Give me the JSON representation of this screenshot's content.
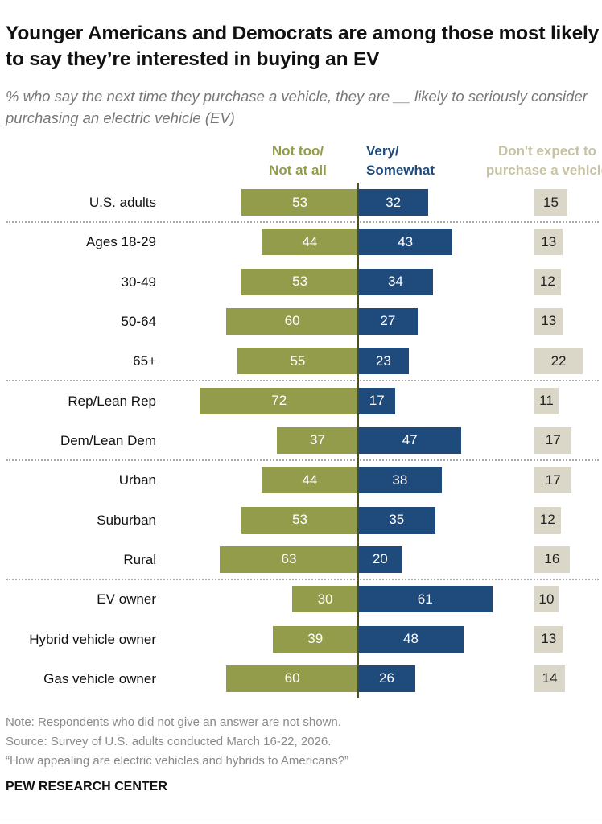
{
  "title": "Younger Americans and Democrats are among those most likely to say they’re interested in buying an EV",
  "subtitle": "% who say the next time they purchase a vehicle, they are __ likely to seriously consider purchasing an electric vehicle (EV)",
  "chart_data": {
    "type": "bar",
    "orientation": "diverging-horizontal",
    "categories": [
      "U.S. adults",
      "Ages 18-29",
      "30-49",
      "50-64",
      "65+",
      "Rep/Lean Rep",
      "Dem/Lean Dem",
      "Urban",
      "Suburban",
      "Rural",
      "EV owner",
      "Hybrid vehicle owner",
      "Gas vehicle owner"
    ],
    "group_breaks_after": [
      0,
      4,
      6,
      9
    ],
    "series": [
      {
        "name": "Not too/ Not at all",
        "color": "#939c4a",
        "values": [
          53,
          44,
          53,
          60,
          55,
          72,
          37,
          44,
          53,
          63,
          30,
          39,
          60
        ]
      },
      {
        "name": "Very/ Somewhat",
        "color": "#1f4a7c",
        "values": [
          32,
          43,
          34,
          27,
          23,
          17,
          47,
          38,
          35,
          20,
          61,
          48,
          26
        ]
      },
      {
        "name": "Don't expect to purchase a vehicle",
        "color": "#dad7c8",
        "header_color": "#c8c2a4",
        "values": [
          15,
          13,
          12,
          13,
          22,
          11,
          17,
          17,
          12,
          16,
          10,
          13,
          14
        ]
      }
    ],
    "header_lines": [
      [
        "Not too/",
        "Not at all"
      ],
      [
        "Very/",
        "Somewhat"
      ],
      [
        "Don't expect to",
        "purchase a vehicle"
      ]
    ]
  },
  "notes": [
    "Note: Respondents who did not give an answer are not shown.",
    "Source: Survey of U.S. adults conducted March 16-22, 2026.",
    "“How appealing are electric vehicles and hybrids to Americans?”"
  ],
  "brand": "PEW RESEARCH CENTER"
}
